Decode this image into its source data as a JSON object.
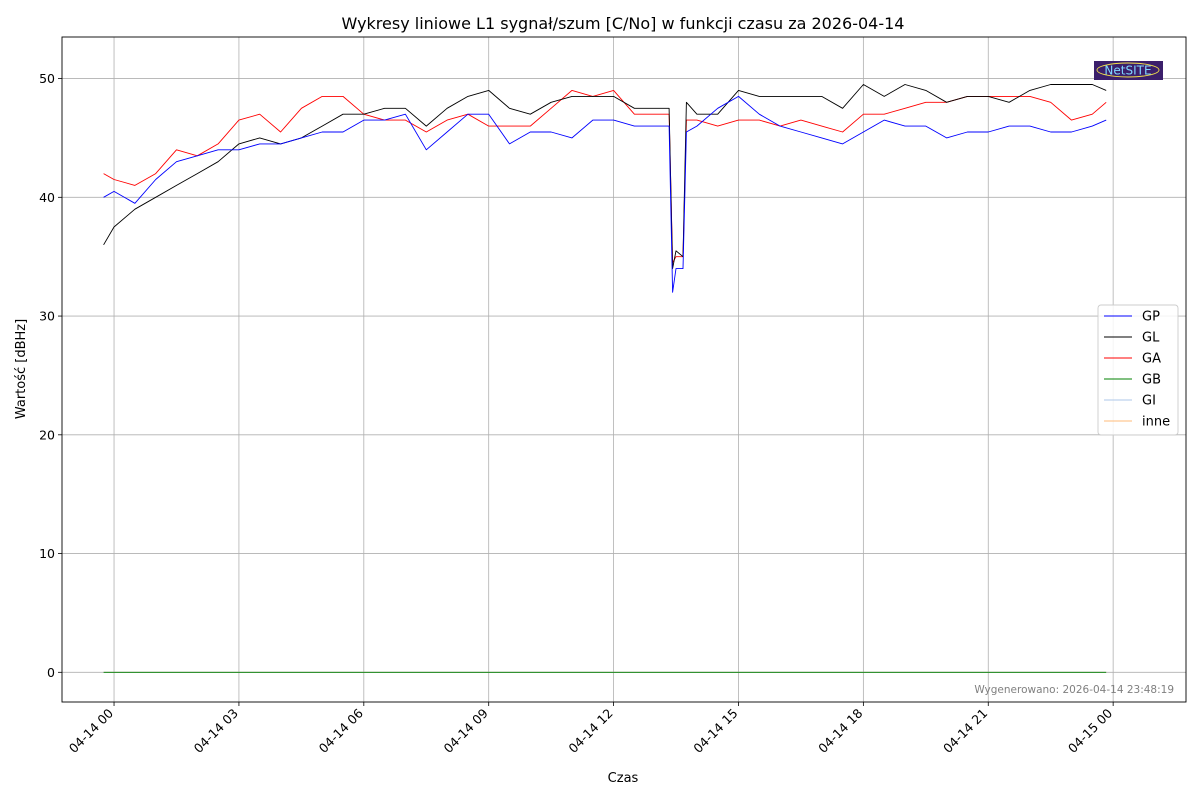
{
  "chart_data": {
    "type": "line",
    "title": "Wykresy liniowe L1 sygnał/szum [C/No] w funkcji czasu za 2026-04-14",
    "xlabel": "Czas",
    "ylabel": "Wartość [dBHz]",
    "xlim": [
      "2026-04-13 22:45",
      "2026-04-15 01:45"
    ],
    "ylim": [
      -2.5,
      53.5
    ],
    "x_ticks": [
      "04-14 00",
      "04-14 03",
      "04-14 06",
      "04-14 09",
      "04-14 12",
      "04-14 15",
      "04-14 18",
      "04-14 21",
      "04-15 00"
    ],
    "y_ticks": [
      0,
      10,
      20,
      30,
      40,
      50
    ],
    "grid": true,
    "legend_position": "right",
    "x": [
      "2026-04-13 23:45",
      "2026-04-14 00:00",
      "2026-04-14 00:30",
      "2026-04-14 01:00",
      "2026-04-14 01:30",
      "2026-04-14 02:00",
      "2026-04-14 02:30",
      "2026-04-14 03:00",
      "2026-04-14 03:30",
      "2026-04-14 04:00",
      "2026-04-14 04:30",
      "2026-04-14 05:00",
      "2026-04-14 05:30",
      "2026-04-14 06:00",
      "2026-04-14 06:30",
      "2026-04-14 07:00",
      "2026-04-14 07:30",
      "2026-04-14 08:00",
      "2026-04-14 08:30",
      "2026-04-14 09:00",
      "2026-04-14 09:30",
      "2026-04-14 10:00",
      "2026-04-14 10:30",
      "2026-04-14 11:00",
      "2026-04-14 11:30",
      "2026-04-14 12:00",
      "2026-04-14 12:30",
      "2026-04-14 13:00",
      "2026-04-14 13:20",
      "2026-04-14 13:25",
      "2026-04-14 13:30",
      "2026-04-14 13:40",
      "2026-04-14 13:45",
      "2026-04-14 14:00",
      "2026-04-14 14:30",
      "2026-04-14 15:00",
      "2026-04-14 15:30",
      "2026-04-14 16:00",
      "2026-04-14 16:30",
      "2026-04-14 17:00",
      "2026-04-14 17:30",
      "2026-04-14 18:00",
      "2026-04-14 18:30",
      "2026-04-14 19:00",
      "2026-04-14 19:30",
      "2026-04-14 20:00",
      "2026-04-14 20:30",
      "2026-04-14 21:00",
      "2026-04-14 21:30",
      "2026-04-14 22:00",
      "2026-04-14 22:30",
      "2026-04-14 23:00",
      "2026-04-14 23:30",
      "2026-04-14 23:50"
    ],
    "series": [
      {
        "name": "GP",
        "color": "#0000ff",
        "values": [
          40,
          40.5,
          39.5,
          41.5,
          43,
          43.5,
          44,
          44,
          44.5,
          44.5,
          45,
          45.5,
          45.5,
          46.5,
          46.5,
          47,
          44,
          45.5,
          47,
          47,
          44.5,
          45.5,
          45.5,
          45,
          46.5,
          46.5,
          46,
          46,
          46,
          32,
          34,
          34,
          45.5,
          46,
          47.5,
          48.5,
          47,
          46,
          45.5,
          45,
          44.5,
          45.5,
          46.5,
          46,
          46,
          45,
          45.5,
          45.5,
          46,
          46,
          45.5,
          45.5,
          46,
          46.5
        ]
      },
      {
        "name": "GL",
        "color": "#000000",
        "values": [
          36,
          37.5,
          39,
          40,
          41,
          42,
          43,
          44.5,
          45,
          44.5,
          45,
          46,
          47,
          47,
          47.5,
          47.5,
          46,
          47.5,
          48.5,
          49,
          47.5,
          47,
          48,
          48.5,
          48.5,
          48.5,
          47.5,
          47.5,
          47.5,
          34,
          35.5,
          35,
          48,
          47,
          47,
          49,
          48.5,
          48.5,
          48.5,
          48.5,
          47.5,
          49.5,
          48.5,
          49.5,
          49,
          48,
          48.5,
          48.5,
          48,
          49,
          49.5,
          49.5,
          49.5,
          49
        ]
      },
      {
        "name": "GA",
        "color": "#ff0000",
        "values": [
          42,
          41.5,
          41,
          42,
          44,
          43.5,
          44.5,
          46.5,
          47,
          45.5,
          47.5,
          48.5,
          48.5,
          47,
          46.5,
          46.5,
          45.5,
          46.5,
          47,
          46,
          46,
          46,
          47.5,
          49,
          48.5,
          49,
          47,
          47,
          47,
          34.5,
          35,
          35,
          46.5,
          46.5,
          46,
          46.5,
          46.5,
          46,
          46.5,
          46,
          45.5,
          47,
          47,
          47.5,
          48,
          48,
          48.5,
          48.5,
          48.5,
          48.5,
          48,
          46.5,
          47,
          48
        ]
      },
      {
        "name": "GB",
        "color": "#008000",
        "values": [
          0,
          0,
          0,
          0,
          0,
          0,
          0,
          0,
          0,
          0,
          0,
          0,
          0,
          0,
          0,
          0,
          0,
          0,
          0,
          0,
          0,
          0,
          0,
          0,
          0,
          0,
          0,
          0,
          0,
          0,
          0,
          0,
          0,
          0,
          0,
          0,
          0,
          0,
          0,
          0,
          0,
          0,
          0,
          0,
          0,
          0,
          0,
          0,
          0,
          0,
          0,
          0,
          0,
          0
        ]
      },
      {
        "name": "GI",
        "color": "#aec7e8",
        "values": [
          0,
          0,
          0,
          0,
          0,
          0,
          0,
          0,
          0,
          0,
          0,
          0,
          0,
          0,
          0,
          0,
          0,
          0,
          0,
          0,
          0,
          0,
          0,
          0,
          0,
          0,
          0,
          0,
          0,
          0,
          0,
          0,
          0,
          0,
          0,
          0,
          0,
          0,
          0,
          0,
          0,
          0,
          0,
          0,
          0,
          0,
          0,
          0,
          0,
          0,
          0,
          0,
          0,
          0
        ]
      },
      {
        "name": "inne",
        "color": "#ffbb78",
        "values": [
          0,
          0,
          0,
          0,
          0,
          0,
          0,
          0,
          0,
          0,
          0,
          0,
          0,
          0,
          0,
          0,
          0,
          0,
          0,
          0,
          0,
          0,
          0,
          0,
          0,
          0,
          0,
          0,
          0,
          0,
          0,
          0,
          0,
          0,
          0,
          0,
          0,
          0,
          0,
          0,
          0,
          0,
          0,
          0,
          0,
          0,
          0,
          0,
          0,
          0,
          0,
          0,
          0,
          0
        ]
      }
    ]
  },
  "footer": {
    "generated": "Wygenerowano: 2026-04-14 23:48:19"
  },
  "logo": {
    "text": "NetSITE",
    "background": "#3b1f6b"
  }
}
